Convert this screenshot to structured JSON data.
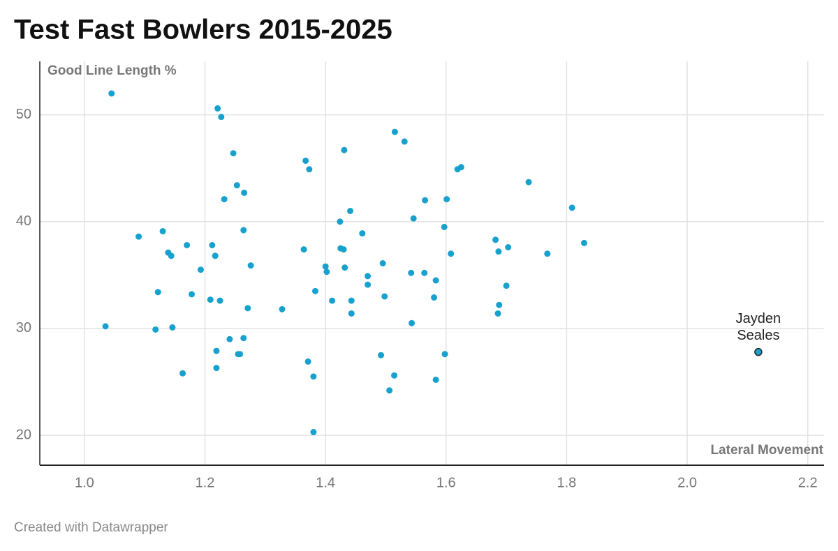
{
  "chart_data": {
    "type": "scatter",
    "title": "Test Fast Bowlers 2015-2025",
    "x_label": "Lateral Movement",
    "y_label": "Good Line Length %",
    "xlim": [
      0.926,
      2.227
    ],
    "ylim": [
      17.2,
      55
    ],
    "xticks": [
      {
        "value": 1,
        "label": "1.0"
      },
      1.2,
      1.4,
      1.6,
      1.8,
      {
        "value": 2,
        "label": "2.0"
      },
      2.2
    ],
    "yticks": [
      20,
      30,
      40,
      50
    ],
    "grid": true,
    "series": [
      {
        "color": "#18a1cd",
        "x": [
          1.045,
          1.221,
          1.227,
          1.247,
          1.253,
          1.265,
          1.232,
          1.515,
          1.531,
          1.431,
          1.367,
          1.373,
          1.619,
          1.625,
          1.737,
          1.565,
          1.601,
          1.809,
          1.441,
          1.424,
          1.546,
          1.597,
          1.461,
          1.264,
          1.13,
          1.09,
          1.17,
          1.212,
          1.829,
          1.682,
          1.703,
          1.687,
          1.768,
          1.608,
          1.139,
          1.144,
          1.217,
          1.364,
          1.425,
          1.43,
          1.276,
          1.193,
          1.4,
          1.402,
          1.432,
          1.495,
          1.542,
          1.564,
          1.583,
          1.47,
          1.47,
          1.7,
          1.383,
          1.122,
          1.178,
          1.209,
          1.225,
          1.411,
          1.443,
          1.498,
          1.58,
          1.271,
          1.328,
          1.443,
          1.688,
          1.686,
          1.543,
          1.035,
          1.118,
          1.146,
          1.241,
          1.264,
          1.219,
          1.255,
          1.258,
          1.492,
          1.598,
          1.371,
          1.219,
          1.163,
          1.38,
          1.514,
          1.583,
          1.506,
          1.38
        ],
        "values": [
          52,
          50.6,
          49.8,
          46.4,
          43.4,
          42.7,
          42.1,
          48.4,
          47.5,
          46.7,
          45.7,
          44.9,
          44.9,
          45.1,
          43.7,
          42,
          42.1,
          41.3,
          41,
          40,
          40.3,
          39.5,
          38.9,
          39.2,
          39.1,
          38.6,
          37.8,
          37.8,
          38,
          38.3,
          37.6,
          37.2,
          37,
          37,
          37.1,
          36.8,
          36.8,
          37.4,
          37.5,
          37.4,
          35.9,
          35.5,
          35.8,
          35.3,
          35.7,
          36.1,
          35.2,
          35.2,
          34.5,
          34.9,
          34.1,
          34,
          33.5,
          33.4,
          33.2,
          32.7,
          32.6,
          32.6,
          32.6,
          33,
          32.9,
          31.9,
          31.8,
          31.4,
          32.2,
          31.4,
          30.5,
          30.2,
          29.9,
          30.1,
          29,
          29.1,
          27.9,
          27.6,
          27.6,
          27.5,
          27.6,
          26.9,
          26.3,
          25.8,
          25.5,
          25.6,
          25.2,
          24.2,
          20.3
        ]
      }
    ],
    "highlight": {
      "label": "Jayden Seales",
      "x": 2.118,
      "y": 27.8,
      "color": "#18a1cd",
      "outline": "#222"
    }
  },
  "footer": "Created with Datawrapper"
}
